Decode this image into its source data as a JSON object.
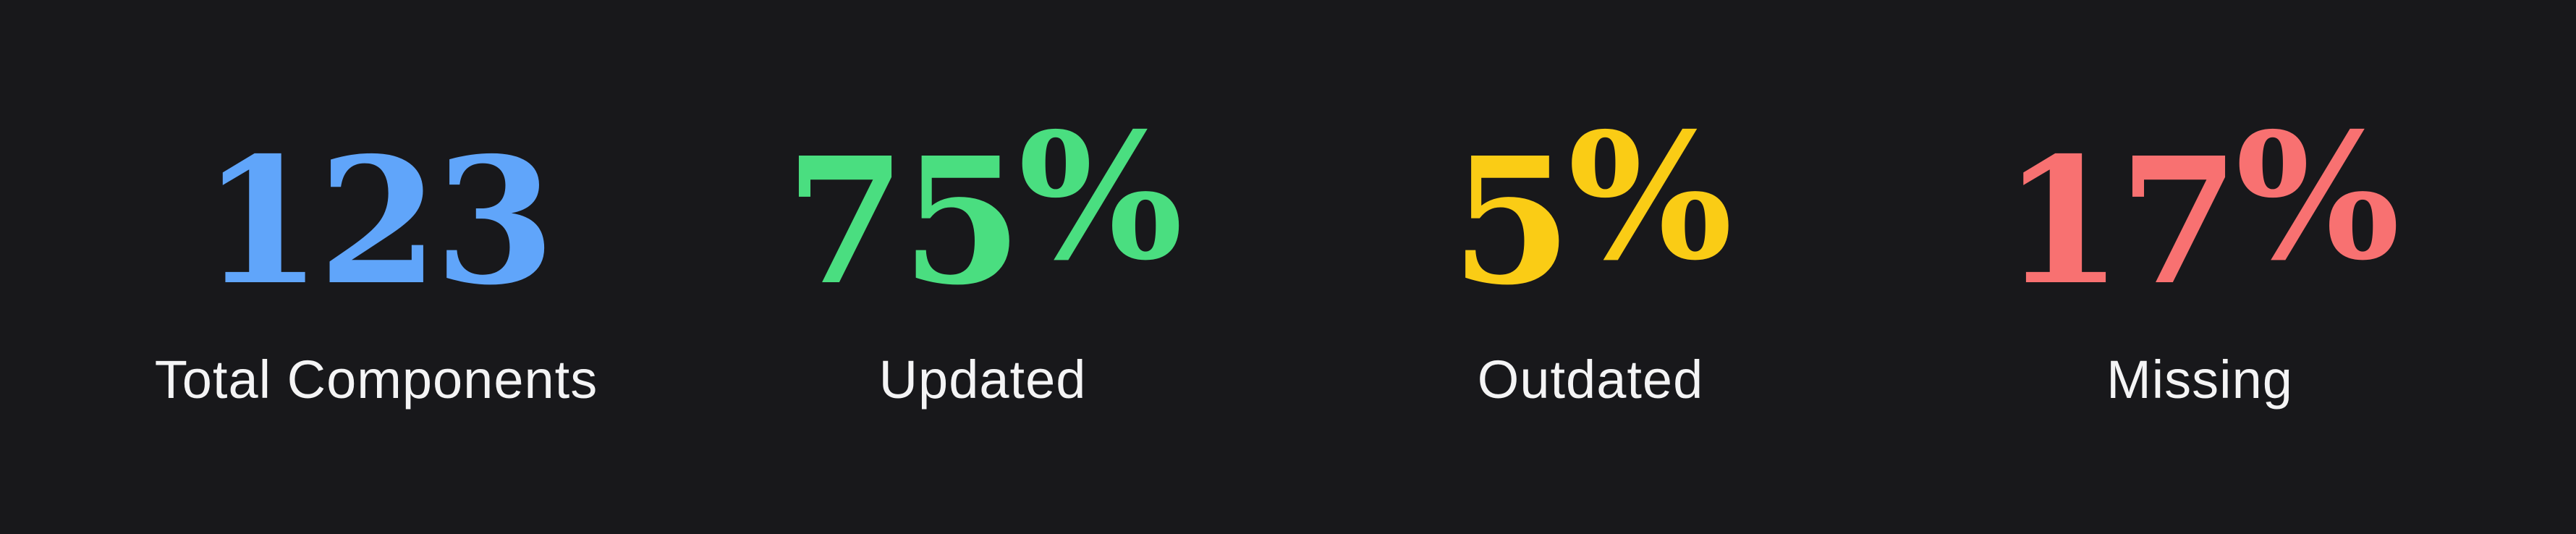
{
  "stats": [
    {
      "value": "123",
      "unit": "",
      "label": "Total Components",
      "color": "#60a5fa"
    },
    {
      "value": "75",
      "unit": "%",
      "label": "Updated",
      "color": "#4ade80"
    },
    {
      "value": "5",
      "unit": "%",
      "label": "Outdated",
      "color": "#facc15"
    },
    {
      "value": "17",
      "unit": "%",
      "label": "Missing",
      "color": "#f87171"
    }
  ]
}
